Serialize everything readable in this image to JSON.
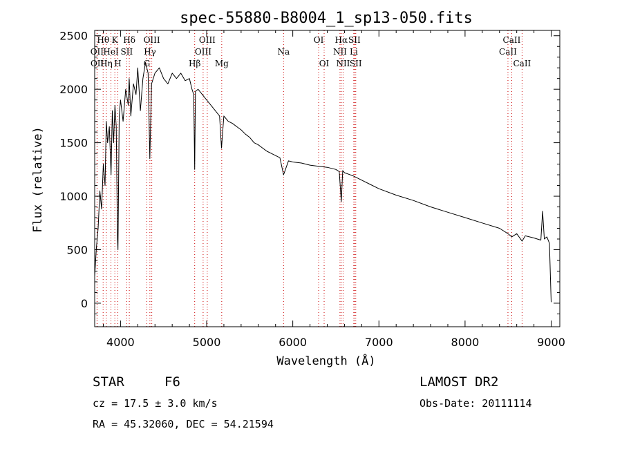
{
  "chart_data": {
    "type": "line",
    "title": "spec-55880-B8004_1_sp13-050.fits",
    "xlabel": "Wavelength (Å)",
    "ylabel": "Flux (relative)",
    "xlim": [
      3700,
      9100
    ],
    "ylim": [
      -220,
      2550
    ],
    "xticks": [
      4000,
      5000,
      6000,
      7000,
      8000,
      9000
    ],
    "yticks": [
      0,
      500,
      1000,
      1500,
      2000,
      2500
    ],
    "grid": false,
    "series": [
      {
        "x": [
          3700,
          3720,
          3740,
          3760,
          3780,
          3800,
          3820,
          3835,
          3850,
          3870,
          3890,
          3905,
          3920,
          3935,
          3950,
          3965,
          3970,
          3985,
          4000,
          4030,
          4060,
          4090,
          4100,
          4120,
          4150,
          4180,
          4200,
          4230,
          4260,
          4290,
          4320,
          4340,
          4360,
          4400,
          4450,
          4500,
          4550,
          4600,
          4650,
          4700,
          4750,
          4800,
          4830,
          4850,
          4861,
          4870,
          4900,
          4950,
          5000,
          5050,
          5100,
          5150,
          5172,
          5200,
          5250,
          5300,
          5350,
          5400,
          5450,
          5500,
          5550,
          5600,
          5650,
          5700,
          5750,
          5800,
          5850,
          5893,
          5950,
          6000,
          6100,
          6200,
          6300,
          6400,
          6500,
          6540,
          6563,
          6580,
          6600,
          6700,
          6800,
          6900,
          7000,
          7200,
          7400,
          7600,
          7800,
          8000,
          8200,
          8400,
          8498,
          8542,
          8600,
          8662,
          8700,
          8800,
          8880,
          8900,
          8920,
          8950,
          8980,
          9000
        ],
        "y": [
          250,
          520,
          700,
          1050,
          880,
          1300,
          1100,
          1700,
          1500,
          1650,
          1200,
          1800,
          1500,
          1850,
          1650,
          600,
          500,
          1750,
          1900,
          1700,
          2000,
          1850,
          2100,
          1750,
          2050,
          1950,
          2200,
          1800,
          2100,
          2250,
          2150,
          1350,
          2050,
          2150,
          2200,
          2100,
          2050,
          2150,
          2100,
          2150,
          2080,
          2100,
          2000,
          1950,
          1250,
          1980,
          2000,
          1950,
          1900,
          1850,
          1800,
          1750,
          1450,
          1750,
          1700,
          1680,
          1650,
          1620,
          1580,
          1550,
          1500,
          1480,
          1450,
          1420,
          1400,
          1380,
          1360,
          1200,
          1330,
          1320,
          1310,
          1290,
          1280,
          1270,
          1250,
          1230,
          950,
          1240,
          1220,
          1190,
          1150,
          1110,
          1070,
          1010,
          960,
          900,
          850,
          800,
          750,
          700,
          650,
          620,
          650,
          580,
          630,
          610,
          590,
          860,
          600,
          620,
          560,
          10
        ]
      }
    ],
    "spectral_lines": [
      {
        "label": "Hθ",
        "wavelength": 3798,
        "row": 1
      },
      {
        "label": "OII",
        "wavelength": 3727,
        "row": 2
      },
      {
        "label": "OII",
        "wavelength": 3729,
        "row": 3
      },
      {
        "label": "HeI",
        "wavelength": 3889,
        "row": 2
      },
      {
        "label": "Hη",
        "wavelength": 3835,
        "row": 3
      },
      {
        "label": "K",
        "wavelength": 3934,
        "row": 1
      },
      {
        "label": "SII",
        "wavelength": 4072,
        "row": 2
      },
      {
        "label": "H",
        "wavelength": 3969,
        "row": 3
      },
      {
        "label": "Hδ",
        "wavelength": 4102,
        "row": 1
      },
      {
        "label": "OIII",
        "wavelength": 4363,
        "row": 1
      },
      {
        "label": "Hγ",
        "wavelength": 4341,
        "row": 2
      },
      {
        "label": "G",
        "wavelength": 4305,
        "row": 3
      },
      {
        "label": "Hβ",
        "wavelength": 4861,
        "row": 3
      },
      {
        "label": "OIII",
        "wavelength": 5007,
        "row": 1
      },
      {
        "label": "OIII",
        "wavelength": 4959,
        "row": 2
      },
      {
        "label": "Mg",
        "wavelength": 5175,
        "row": 3
      },
      {
        "label": "Na",
        "wavelength": 5893,
        "row": 2
      },
      {
        "label": "OI",
        "wavelength": 6300,
        "row": 1
      },
      {
        "label": "OI",
        "wavelength": 6364,
        "row": 3
      },
      {
        "label": "Hα",
        "wavelength": 6563,
        "row": 1
      },
      {
        "label": "SII",
        "wavelength": 6716,
        "row": 1
      },
      {
        "label": "NII",
        "wavelength": 6548,
        "row": 2
      },
      {
        "label": "Li",
        "wavelength": 6708,
        "row": 2
      },
      {
        "label": "NII",
        "wavelength": 6584,
        "row": 3
      },
      {
        "label": "SII",
        "wavelength": 6731,
        "row": 3
      },
      {
        "label": "CaII",
        "wavelength": 8542,
        "row": 1
      },
      {
        "label": "CaII",
        "wavelength": 8498,
        "row": 2
      },
      {
        "label": "CaII",
        "wavelength": 8662,
        "row": 3
      }
    ],
    "colors": {
      "spectrum": "#000000",
      "lines": "#cc0000"
    }
  },
  "info": {
    "class": "STAR",
    "subclass": "F6",
    "survey": "LAMOST DR2",
    "cz": "cz = 17.5 ± 3.0 km/s",
    "obs_date": "Obs-Date: 20111114",
    "radec": "RA =  45.32060, DEC =  54.21594"
  }
}
